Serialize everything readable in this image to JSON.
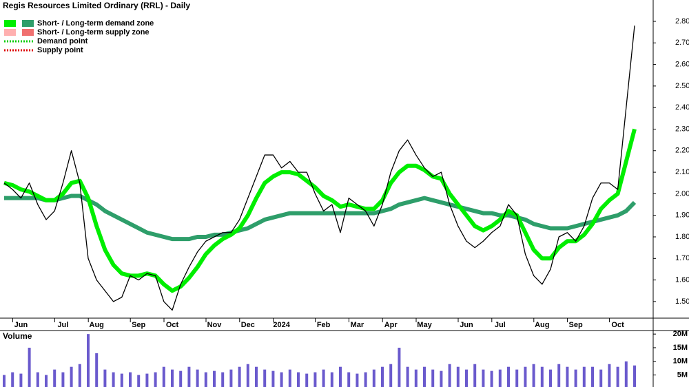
{
  "chart_data": {
    "type": "line",
    "title": "Regis Resources Limited Ordinary (RRL) - Daily",
    "categories": [
      null,
      null,
      "Jun",
      null,
      null,
      null,
      null,
      "Jul",
      null,
      null,
      null,
      "Aug",
      null,
      null,
      null,
      null,
      "Sep",
      null,
      null,
      null,
      "Oct",
      null,
      null,
      null,
      null,
      "Nov",
      null,
      null,
      null,
      "Dec",
      null,
      null,
      null,
      "2024",
      null,
      null,
      null,
      null,
      "Feb",
      null,
      null,
      null,
      "Mar",
      null,
      null,
      null,
      "Apr",
      null,
      null,
      null,
      "May",
      null,
      null,
      null,
      null,
      "Jun",
      null,
      null,
      null,
      "Jul",
      null,
      null,
      null,
      null,
      "Aug",
      null,
      null,
      null,
      "Sep",
      null,
      null,
      null,
      null,
      "Oct",
      null,
      null
    ],
    "series": [
      {
        "color": "#000000",
        "values": [
          2.05,
          2.02,
          1.98,
          2.05,
          1.95,
          1.88,
          1.92,
          2.05,
          2.2,
          2.05,
          1.7,
          1.6,
          1.55,
          1.5,
          1.52,
          1.62,
          1.6,
          1.63,
          1.62,
          1.5,
          1.46,
          1.58,
          1.66,
          1.73,
          1.78,
          1.8,
          1.82,
          1.82,
          1.88,
          1.98,
          2.08,
          2.18,
          2.18,
          2.12,
          2.15,
          2.1,
          2.1,
          2.0,
          1.92,
          1.95,
          1.82,
          1.98,
          1.95,
          1.92,
          1.85,
          1.95,
          2.1,
          2.2,
          2.25,
          2.18,
          2.12,
          2.08,
          2.1,
          1.95,
          1.85,
          1.78,
          1.75,
          1.78,
          1.82,
          1.85,
          1.95,
          1.9,
          1.72,
          1.62,
          1.58,
          1.65,
          1.8,
          1.82,
          1.78,
          1.85,
          1.98,
          2.05,
          2.05,
          2.02,
          2.4,
          2.78
        ]
      },
      {
        "color": "#00ee00",
        "values": [
          2.05,
          2.04,
          2.02,
          2.01,
          1.99,
          1.97,
          1.97,
          2.0,
          2.05,
          2.06,
          1.98,
          1.85,
          1.74,
          1.67,
          1.63,
          1.62,
          1.62,
          1.63,
          1.62,
          1.58,
          1.55,
          1.57,
          1.61,
          1.66,
          1.72,
          1.76,
          1.79,
          1.81,
          1.84,
          1.9,
          1.98,
          2.05,
          2.08,
          2.1,
          2.1,
          2.09,
          2.06,
          2.03,
          1.99,
          1.97,
          1.94,
          1.95,
          1.94,
          1.93,
          1.93,
          1.97,
          2.05,
          2.1,
          2.13,
          2.13,
          2.11,
          2.08,
          2.07,
          2.0,
          1.95,
          1.9,
          1.85,
          1.83,
          1.85,
          1.88,
          1.92,
          1.9,
          1.82,
          1.74,
          1.7,
          1.7,
          1.75,
          1.78,
          1.78,
          1.81,
          1.86,
          1.93,
          1.97,
          2.0,
          2.15,
          2.3
        ]
      },
      {
        "color": "#2e9e6a",
        "values": [
          1.98,
          1.98,
          1.98,
          1.98,
          1.98,
          1.97,
          1.97,
          1.98,
          1.99,
          1.99,
          1.97,
          1.95,
          1.92,
          1.9,
          1.88,
          1.86,
          1.84,
          1.82,
          1.81,
          1.8,
          1.79,
          1.79,
          1.79,
          1.8,
          1.8,
          1.81,
          1.81,
          1.82,
          1.83,
          1.84,
          1.86,
          1.88,
          1.89,
          1.9,
          1.91,
          1.91,
          1.91,
          1.91,
          1.91,
          1.91,
          1.91,
          1.91,
          1.91,
          1.91,
          1.91,
          1.92,
          1.93,
          1.95,
          1.96,
          1.97,
          1.98,
          1.97,
          1.96,
          1.95,
          1.94,
          1.93,
          1.92,
          1.91,
          1.91,
          1.9,
          1.9,
          1.89,
          1.88,
          1.86,
          1.85,
          1.84,
          1.84,
          1.84,
          1.85,
          1.86,
          1.87,
          1.88,
          1.89,
          1.9,
          1.92,
          1.96
        ]
      }
    ],
    "ylim": [
      1.423,
      2.899
    ],
    "yticks": [
      {
        "value": 1.5,
        "label": "1.50"
      },
      {
        "value": 1.6,
        "label": "1.60"
      },
      {
        "value": 1.7,
        "label": "1.70"
      },
      {
        "value": 1.8,
        "label": "1.80"
      },
      {
        "value": 1.9,
        "label": "1.90"
      },
      {
        "value": 2.0,
        "label": "2.00"
      },
      {
        "value": 2.1,
        "label": "2.10"
      },
      {
        "value": 2.2,
        "label": "2.20"
      },
      {
        "value": 2.3,
        "label": "2.30"
      },
      {
        "value": 2.4,
        "label": "2.40"
      },
      {
        "value": 2.5,
        "label": "2.50"
      },
      {
        "value": 2.6,
        "label": "2.60"
      },
      {
        "value": 2.7,
        "label": "2.70"
      },
      {
        "value": 2.8,
        "label": "2.80"
      }
    ],
    "legend": [
      {
        "label": "Short- / Long-term demand zone",
        "colors": [
          "#00ee00",
          "#2e9e6a"
        ]
      },
      {
        "label": "Short- / Long-term supply zone",
        "colors": [
          "#ffb0b0",
          "#f07070"
        ]
      },
      {
        "label": "Demand point",
        "colors": [
          "#00cc00"
        ],
        "dotted": true
      },
      {
        "label": "Supply point",
        "colors": [
          "#dd0000"
        ],
        "dotted": true
      }
    ],
    "volume": {
      "label": "Volume",
      "color": "#6a5acd",
      "values": [
        5000000,
        6000000,
        5500000,
        15000000,
        6000000,
        5000000,
        7000000,
        6000000,
        8000000,
        9000000,
        20000000,
        13000000,
        7000000,
        6000000,
        5500000,
        6000000,
        5000000,
        5500000,
        6000000,
        8000000,
        7000000,
        6500000,
        8000000,
        7000000,
        6000000,
        6500000,
        6000000,
        7000000,
        8000000,
        9000000,
        8000000,
        7000000,
        6500000,
        6000000,
        7000000,
        6000000,
        5500000,
        6000000,
        7000000,
        6000000,
        8000000,
        6000000,
        5500000,
        6000000,
        7000000,
        8000000,
        9000000,
        15000000,
        8000000,
        7000000,
        8000000,
        7000000,
        6500000,
        9000000,
        8000000,
        7000000,
        9000000,
        7000000,
        6500000,
        7000000,
        8000000,
        7000000,
        8000000,
        9000000,
        8000000,
        7000000,
        9000000,
        8000000,
        7000000,
        8000000,
        8000000,
        7000000,
        9000000,
        8000000,
        10000000,
        8500000
      ],
      "ylim": [
        600000,
        21300000
      ],
      "yticks": [
        {
          "value": 5000000,
          "label": "5M"
        },
        {
          "value": 10000000,
          "label": "10M"
        },
        {
          "value": 15000000,
          "label": "15M"
        },
        {
          "value": 20000000,
          "label": "20M"
        }
      ]
    }
  }
}
